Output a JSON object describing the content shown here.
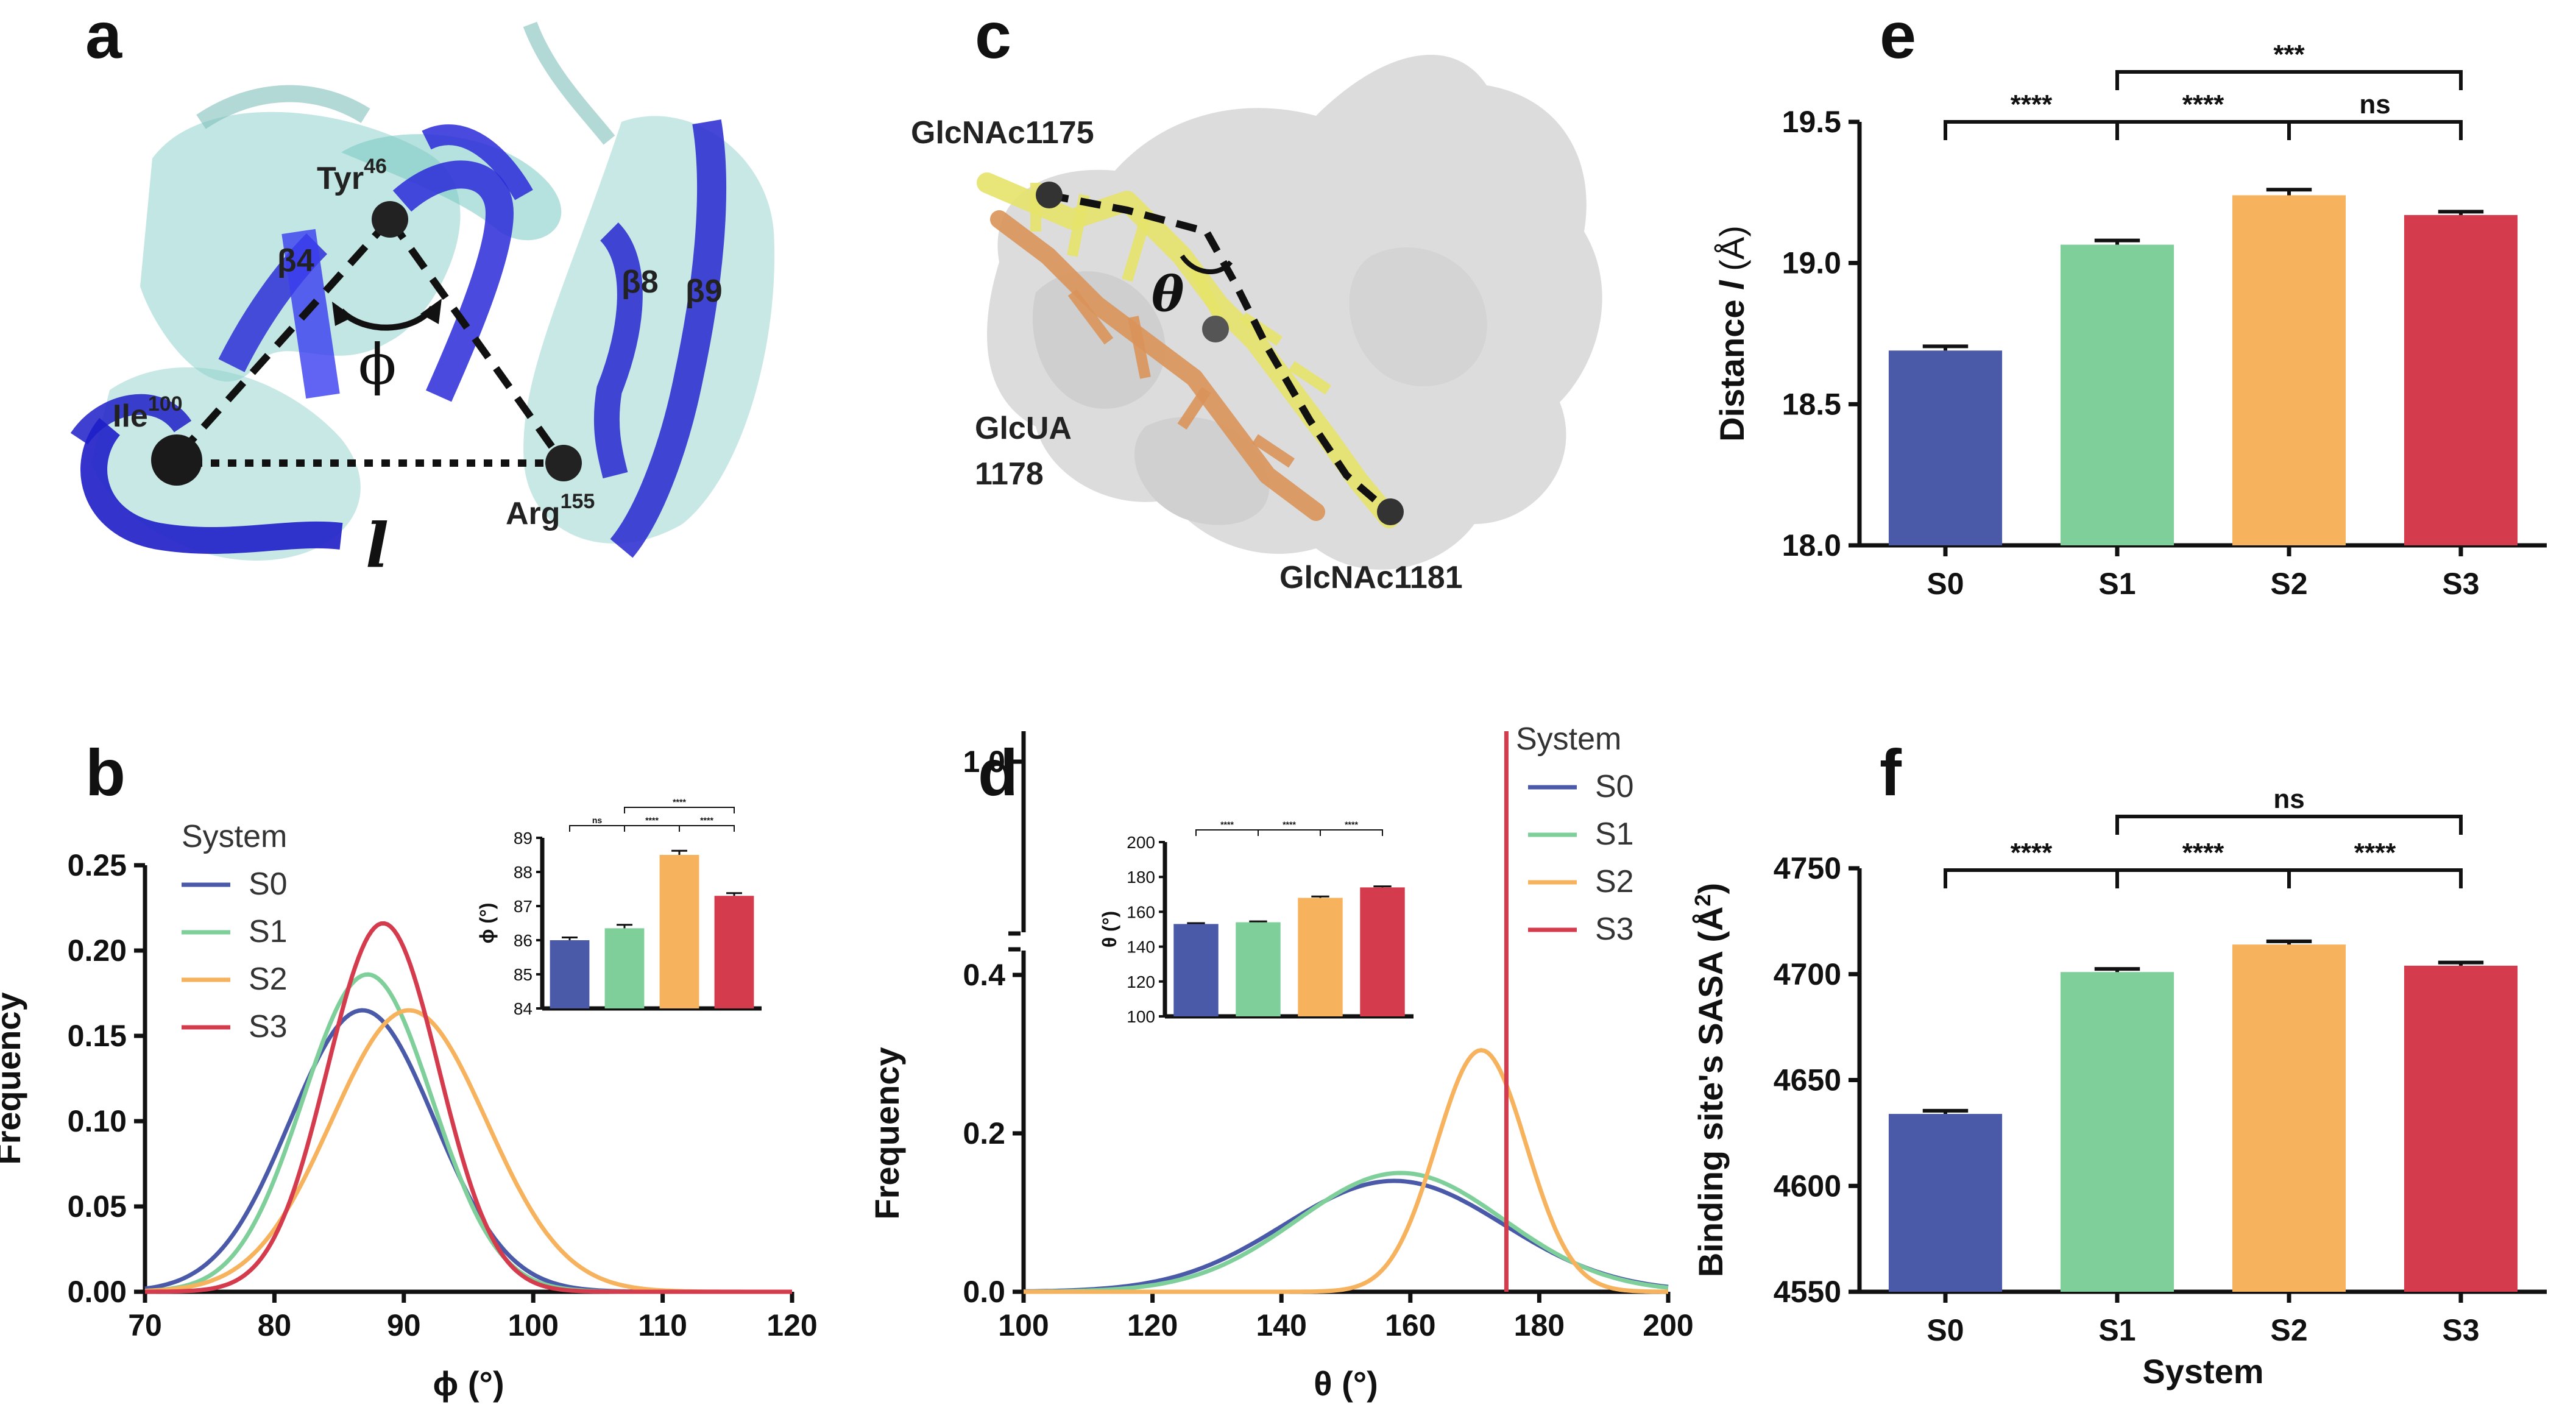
{
  "colors": {
    "S0": "#4a5aa8",
    "S1": "#7fcf9a",
    "S2": "#f7b25e",
    "S3": "#d43c4d"
  },
  "panels": {
    "a": {
      "letter": "a",
      "labels": {
        "tyr": "Tyr",
        "tyr_sup": "46",
        "ile": "Ile",
        "ile_sup": "100",
        "arg": "Arg",
        "arg_sup": "155",
        "b4": "β4",
        "b8": "β8",
        "b9": "β9",
        "phi": "ϕ",
        "l": "l"
      }
    },
    "c": {
      "letter": "c",
      "labels": {
        "glcnac1175": "GlcNAc1175",
        "glcua": "GlcUA",
        "glcua_num": "1178",
        "glcnac1181": "GlcNAc1181",
        "theta": "θ"
      }
    },
    "b": {
      "letter": "b",
      "inset_ylabel": "ϕ (°)"
    },
    "d": {
      "letter": "d",
      "inset_ylabel": "θ (°)"
    },
    "e": {
      "letter": "e"
    },
    "f": {
      "letter": "f"
    }
  },
  "chart_data": [
    {
      "id": "b",
      "type": "line",
      "xlabel": "ϕ (°)",
      "ylabel": "Frequency",
      "xlim": [
        70,
        120
      ],
      "ylim": [
        0,
        0.25
      ],
      "xticks": [
        70,
        80,
        90,
        100,
        110,
        120
      ],
      "yticks": [
        "0.00",
        "0.05",
        "0.10",
        "0.15",
        "0.20",
        "0.25"
      ],
      "legend_title": "System",
      "legend_position": "left",
      "series": [
        {
          "name": "S0",
          "mean": 86.8,
          "sd": 5.6,
          "peak": 0.165
        },
        {
          "name": "S1",
          "mean": 87.2,
          "sd": 5.0,
          "peak": 0.186
        },
        {
          "name": "S2",
          "mean": 90.4,
          "sd": 6.0,
          "peak": 0.165
        },
        {
          "name": "S3",
          "mean": 88.4,
          "sd": 4.3,
          "peak": 0.216
        }
      ],
      "inset": {
        "type": "bar",
        "ylabel": "ϕ (°)",
        "ylim": [
          84,
          89
        ],
        "yticks": [
          "84",
          "85",
          "86",
          "87",
          "88",
          "89"
        ],
        "values": [
          86.0,
          86.35,
          88.5,
          87.3
        ],
        "errors": [
          0.08,
          0.1,
          0.12,
          0.08
        ],
        "significance": [
          {
            "from": 0,
            "to": 1,
            "label": "ns"
          },
          {
            "from": 1,
            "to": 2,
            "label": "****"
          },
          {
            "from": 2,
            "to": 3,
            "label": "****"
          },
          {
            "from": 1,
            "to": 3,
            "label": "****"
          }
        ]
      }
    },
    {
      "id": "d",
      "type": "line",
      "xlabel": "θ (°)",
      "ylabel": "Frequency",
      "xlim": [
        100,
        200
      ],
      "ylim": [
        0,
        0.4
      ],
      "broken_axis_top": "1.0",
      "xticks": [
        100,
        120,
        140,
        160,
        180,
        200
      ],
      "yticks": [
        "0.0",
        "0.2",
        "0.4"
      ],
      "legend_title": "System",
      "legend_position": "right",
      "series": [
        {
          "name": "S0",
          "mean": 157.5,
          "sd": 17,
          "peak": 0.14
        },
        {
          "name": "S1",
          "mean": 158.5,
          "sd": 16,
          "peak": 0.15
        },
        {
          "name": "S2",
          "mean": 171.0,
          "sd": 7,
          "peak": 0.305
        },
        {
          "name": "S3",
          "vertical_at": 174.9
        }
      ],
      "inset": {
        "type": "bar",
        "ylabel": "θ (°)",
        "ylim": [
          100,
          200
        ],
        "yticks": [
          "100",
          "120",
          "140",
          "160",
          "180",
          "200"
        ],
        "values": [
          153,
          154,
          168,
          174
        ],
        "errors": [
          0.5,
          0.5,
          0.8,
          0.6
        ],
        "significance": [
          {
            "from": 0,
            "to": 1,
            "label": "****"
          },
          {
            "from": 1,
            "to": 2,
            "label": "****"
          },
          {
            "from": 2,
            "to": 3,
            "label": "****"
          }
        ]
      }
    },
    {
      "id": "e",
      "type": "bar",
      "categories": [
        "S0",
        "S1",
        "S2",
        "S3"
      ],
      "xlabel": "",
      "ylabel": "Distance",
      "ylabel_italic": "l",
      "ylabel_unit": "(Å)",
      "values": [
        18.69,
        19.065,
        19.24,
        19.17
      ],
      "errors": [
        0.015,
        0.015,
        0.02,
        0.012
      ],
      "ylim": [
        18.0,
        19.5
      ],
      "yticks": [
        "18.0",
        "18.5",
        "19.0",
        "19.5"
      ],
      "significance": [
        {
          "from": 0,
          "to": 1,
          "label": "****",
          "level": 0
        },
        {
          "from": 1,
          "to": 2,
          "label": "****",
          "level": 0
        },
        {
          "from": 2,
          "to": 3,
          "label": "ns",
          "level": 0
        },
        {
          "from": 1,
          "to": 3,
          "label": "***",
          "level": 1
        }
      ]
    },
    {
      "id": "f",
      "type": "bar",
      "categories": [
        "S0",
        "S1",
        "S2",
        "S3"
      ],
      "xlabel": "System",
      "ylabel": "Binding site's SASA (Å",
      "ylabel_sup": "2",
      "ylabel_close": ")",
      "values": [
        4634,
        4701,
        4714,
        4704
      ],
      "errors": [
        1.5,
        1.5,
        1.5,
        1.5
      ],
      "ylim": [
        4550,
        4750
      ],
      "yticks": [
        "4550",
        "4600",
        "4650",
        "4700",
        "4750"
      ],
      "significance": [
        {
          "from": 0,
          "to": 1,
          "label": "****",
          "level": 0
        },
        {
          "from": 1,
          "to": 2,
          "label": "****",
          "level": 0
        },
        {
          "from": 2,
          "to": 3,
          "label": "****",
          "level": 0
        },
        {
          "from": 1,
          "to": 3,
          "label": "ns",
          "level": 1
        }
      ]
    }
  ]
}
